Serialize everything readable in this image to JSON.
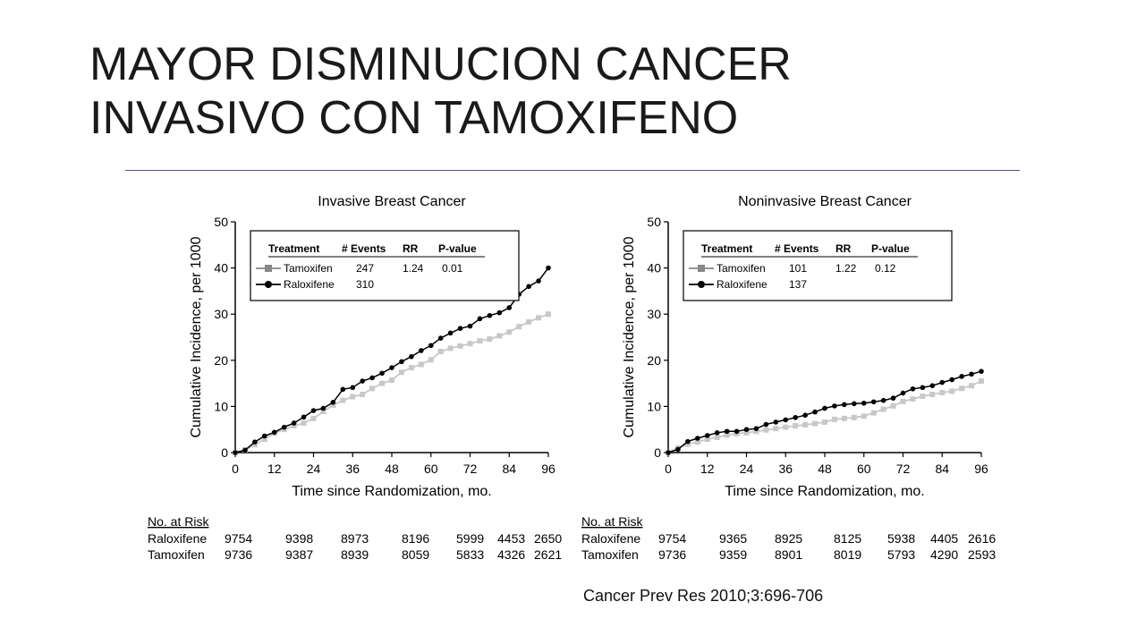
{
  "slide": {
    "title_line1": "MAYOR DISMINUCION CANCER",
    "title_line2": "INVASIVO CON TAMOXIFENO",
    "citation": "Cancer Prev Res 2010;3:696-706"
  },
  "colors": {
    "tamoxifen": "#c8c8c8",
    "raloxifene": "#000000",
    "rule": "#6a4a7a"
  },
  "chart_data": [
    {
      "type": "line",
      "title": "Invasive Breast Cancer",
      "xlabel": "Time since Randomization, mo.",
      "ylabel": "Cumulative Incidence, per 1000",
      "xlim": [
        0,
        96
      ],
      "ylim": [
        0,
        50
      ],
      "xticks": [
        "0",
        "12",
        "24",
        "36",
        "48",
        "60",
        "72",
        "84",
        "96"
      ],
      "yticks": [
        "0",
        "10",
        "20",
        "30",
        "40",
        "50"
      ],
      "legend": {
        "position": "top-left",
        "headers": [
          "Treatment",
          "# Events",
          "RR",
          "P-value"
        ],
        "rows": [
          {
            "name": "Tamoxifen",
            "events": "247",
            "rr": "1.24",
            "p": "0.01"
          },
          {
            "name": "Raloxifene",
            "events": "310",
            "rr": "",
            "p": ""
          }
        ]
      },
      "series": [
        {
          "name": "Tamoxifen",
          "marker": "square",
          "x": [
            0,
            3,
            6,
            9,
            12,
            15,
            18,
            21,
            24,
            27,
            30,
            33,
            36,
            39,
            42,
            45,
            48,
            51,
            54,
            57,
            60,
            63,
            66,
            69,
            72,
            75,
            78,
            81,
            84,
            87,
            90,
            93,
            96
          ],
          "y": [
            0,
            0.6,
            1.7,
            2.9,
            4.2,
            5.0,
            5.8,
            6.4,
            7.4,
            8.9,
            10.3,
            11.3,
            12.1,
            12.6,
            13.9,
            15.0,
            15.7,
            17.4,
            18.4,
            19.1,
            20.1,
            21.9,
            22.6,
            23.1,
            23.6,
            24.2,
            24.6,
            25.3,
            26.1,
            27.3,
            28.3,
            29.2,
            30.0
          ]
        },
        {
          "name": "Raloxifene",
          "marker": "circle",
          "x": [
            0,
            3,
            6,
            9,
            12,
            15,
            18,
            21,
            24,
            27,
            30,
            33,
            36,
            39,
            42,
            45,
            48,
            51,
            54,
            57,
            60,
            63,
            66,
            69,
            72,
            75,
            78,
            81,
            84,
            87,
            90,
            93,
            96
          ],
          "y": [
            0,
            0.5,
            2.3,
            3.6,
            4.4,
            5.5,
            6.4,
            7.7,
            9.1,
            9.6,
            10.9,
            13.7,
            14.1,
            15.5,
            16.2,
            17.2,
            18.4,
            19.7,
            20.8,
            22.1,
            23.2,
            24.8,
            25.9,
            26.9,
            27.4,
            29.0,
            29.7,
            30.3,
            31.4,
            34.3,
            36.0,
            37.2,
            40.0
          ]
        }
      ],
      "at_risk": {
        "header": "No. at Risk",
        "rows": [
          {
            "label": "Raloxifene",
            "values": [
              "9754",
              "9398",
              "8973",
              "8196",
              "5999",
              "4453",
              "2650"
            ]
          },
          {
            "label": "Tamoxifen",
            "values": [
              "9736",
              "9387",
              "8939",
              "8059",
              "5833",
              "4326",
              "2621"
            ]
          }
        ]
      }
    },
    {
      "type": "line",
      "title": "Noninvasive Breast Cancer",
      "xlabel": "Time since Randomization, mo.",
      "ylabel": "Cumulative Incidence, per 1000",
      "xlim": [
        0,
        96
      ],
      "ylim": [
        0,
        50
      ],
      "xticks": [
        "0",
        "12",
        "24",
        "36",
        "48",
        "60",
        "72",
        "84",
        "96"
      ],
      "yticks": [
        "0",
        "10",
        "20",
        "30",
        "40",
        "50"
      ],
      "legend": {
        "position": "top-left",
        "headers": [
          "Treatment",
          "# Events",
          "RR",
          "P-value"
        ],
        "rows": [
          {
            "name": "Tamoxifen",
            "events": "101",
            "rr": "1.22",
            "p": "0.12"
          },
          {
            "name": "Raloxifene",
            "events": "137",
            "rr": "",
            "p": ""
          }
        ]
      },
      "series": [
        {
          "name": "Tamoxifen",
          "marker": "square",
          "x": [
            0,
            3,
            6,
            9,
            12,
            15,
            18,
            21,
            24,
            27,
            30,
            33,
            36,
            39,
            42,
            45,
            48,
            51,
            54,
            57,
            60,
            63,
            66,
            69,
            72,
            75,
            78,
            81,
            84,
            87,
            90,
            93,
            96
          ],
          "y": [
            0,
            1.0,
            1.8,
            2.3,
            2.9,
            3.3,
            3.8,
            4.1,
            4.3,
            4.6,
            4.9,
            5.2,
            5.5,
            5.8,
            6.0,
            6.3,
            6.6,
            7.2,
            7.4,
            7.6,
            7.9,
            8.6,
            9.4,
            10.1,
            11.1,
            11.6,
            12.2,
            12.6,
            13.0,
            13.3,
            13.9,
            14.5,
            15.5
          ]
        },
        {
          "name": "Raloxifene",
          "marker": "circle",
          "x": [
            0,
            3,
            6,
            9,
            12,
            15,
            18,
            21,
            24,
            27,
            30,
            33,
            36,
            39,
            42,
            45,
            48,
            51,
            54,
            57,
            60,
            63,
            66,
            69,
            72,
            75,
            78,
            81,
            84,
            87,
            90,
            93,
            96
          ],
          "y": [
            0,
            0.7,
            2.4,
            3.1,
            3.7,
            4.3,
            4.6,
            4.6,
            5.0,
            5.2,
            6.1,
            6.6,
            7.1,
            7.6,
            8.1,
            8.8,
            9.6,
            10.1,
            10.4,
            10.6,
            10.7,
            11.0,
            11.3,
            11.8,
            12.9,
            13.8,
            14.1,
            14.5,
            15.2,
            15.8,
            16.5,
            17.0,
            17.6
          ]
        }
      ],
      "at_risk": {
        "header": "No. at Risk",
        "rows": [
          {
            "label": "Raloxifene",
            "values": [
              "9754",
              "9365",
              "8925",
              "8125",
              "5938",
              "4405",
              "2616"
            ]
          },
          {
            "label": "Tamoxifen",
            "values": [
              "9736",
              "9359",
              "8901",
              "8019",
              "5793",
              "4290",
              "2593"
            ]
          }
        ]
      }
    }
  ]
}
